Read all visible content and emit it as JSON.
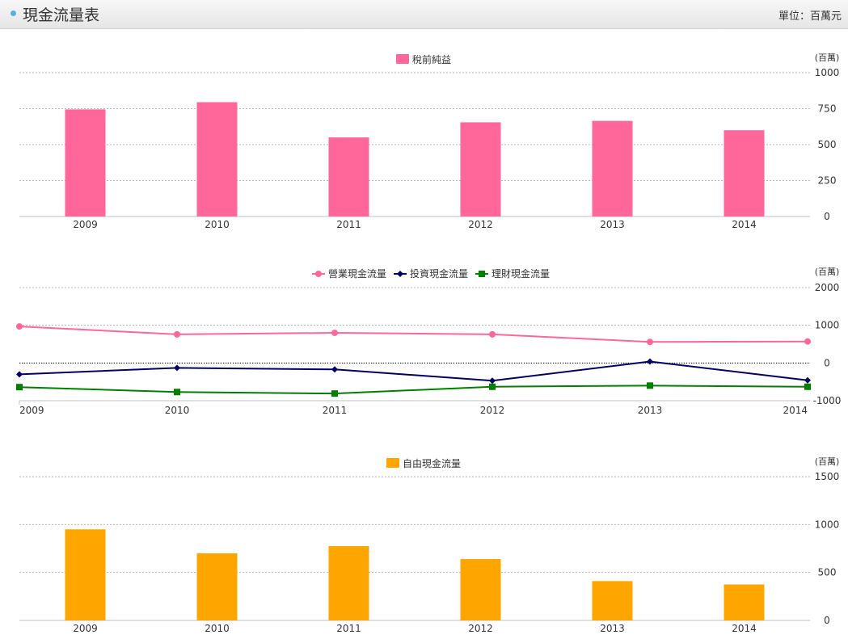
{
  "header": {
    "title": "現金流量表",
    "unit": "單位：百萬元"
  },
  "colors": {
    "pink": "#ff6699",
    "navy": "#000066",
    "green": "#008000",
    "orange": "#ffa500"
  },
  "chart_data": [
    {
      "type": "bar",
      "categories": [
        "2009",
        "2010",
        "2011",
        "2012",
        "2013",
        "2014"
      ],
      "series": [
        {
          "name": "稅前純益",
          "values": [
            745,
            795,
            550,
            655,
            665,
            600
          ]
        }
      ],
      "yunit": "(百萬)",
      "ylim": [
        0,
        1000
      ],
      "yticks": [
        0,
        250,
        500,
        750,
        1000
      ],
      "legend": "top-center",
      "grid": true
    },
    {
      "type": "line",
      "categories": [
        "2009",
        "2010",
        "2011",
        "2012",
        "2013",
        "2014"
      ],
      "series": [
        {
          "name": "營業現金流量",
          "values": [
            970,
            760,
            800,
            760,
            560,
            570
          ],
          "marker": "circle"
        },
        {
          "name": "投資現金流量",
          "values": [
            -300,
            -130,
            -170,
            -470,
            40,
            -460
          ],
          "marker": "diamond"
        },
        {
          "name": "理財現金流量",
          "values": [
            -640,
            -770,
            -810,
            -630,
            -600,
            -630
          ],
          "marker": "square"
        }
      ],
      "yunit": "(百萬)",
      "ylim": [
        -1000,
        2000
      ],
      "yticks": [
        -1000,
        0,
        1000,
        2000
      ],
      "legend": "top-center",
      "grid": true
    },
    {
      "type": "bar",
      "categories": [
        "2009",
        "2010",
        "2011",
        "2012",
        "2013",
        "2014"
      ],
      "series": [
        {
          "name": "自由現金流量",
          "values": [
            950,
            700,
            775,
            640,
            410,
            375
          ]
        }
      ],
      "yunit": "(百萬)",
      "ylim": [
        0,
        1500
      ],
      "yticks": [
        0,
        500,
        1000,
        1500
      ],
      "legend": "top-center",
      "grid": true
    }
  ]
}
